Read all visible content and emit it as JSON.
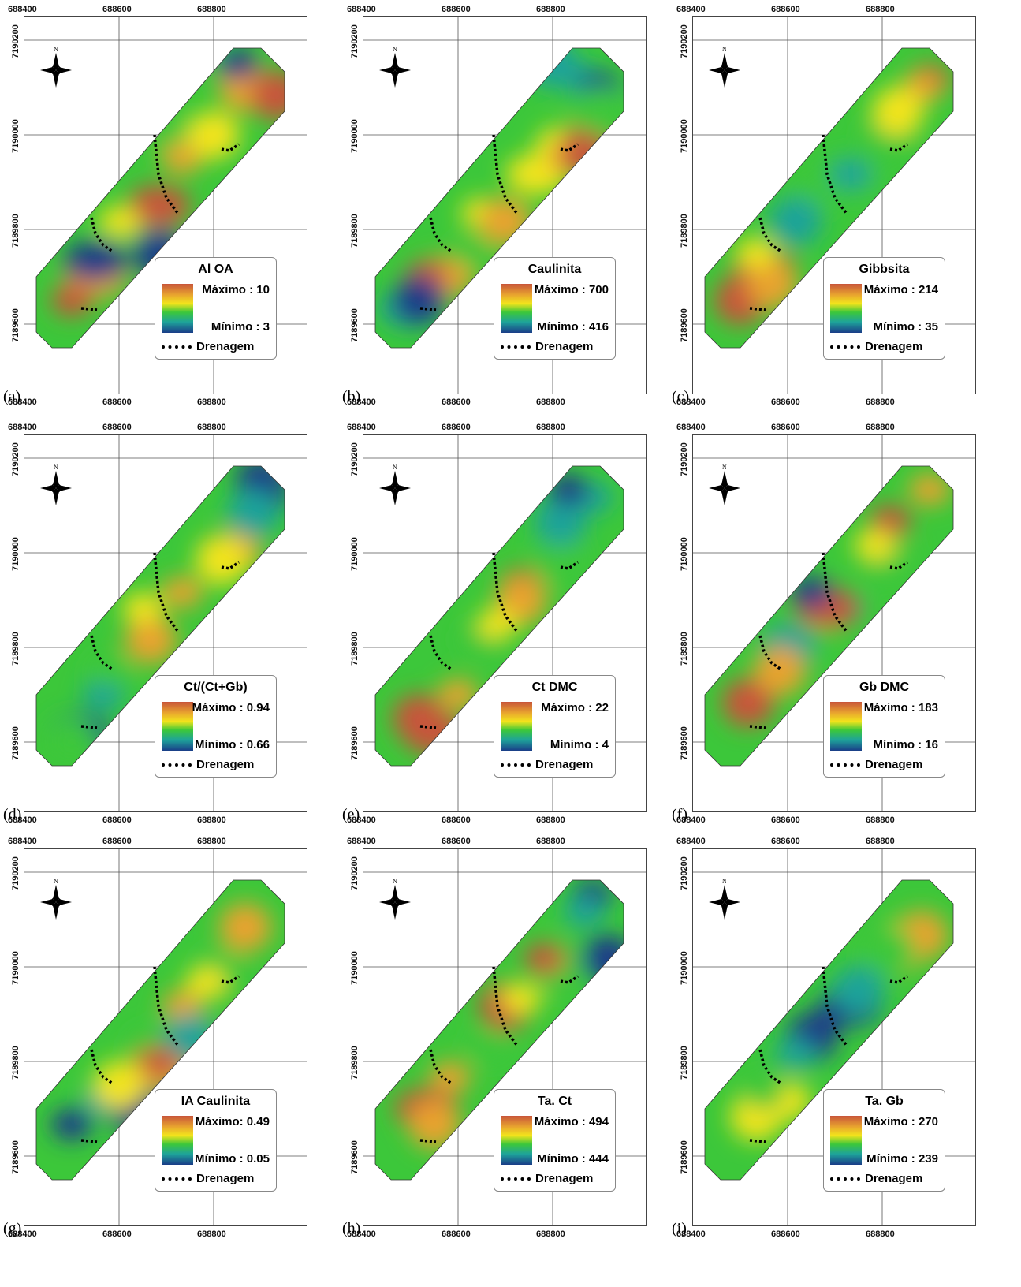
{
  "axes": {
    "x_ticks": [
      "688400",
      "688600",
      "688800"
    ],
    "y_ticks": [
      "7190200",
      "7190000",
      "7189800",
      "7189600"
    ]
  },
  "compass_label": "N",
  "drainage_label": "Drenagem",
  "panels": [
    {
      "letter": "(a)",
      "title": "Al OA",
      "max": "Máximo : 10",
      "min": "Mínimo : 3"
    },
    {
      "letter": "(b)",
      "title": "Caulinita",
      "max": "Máximo : 700",
      "min": "Mínimo : 416"
    },
    {
      "letter": "(c)",
      "title": "Gibbsita",
      "max": "Máximo : 214",
      "min": "Mínimo : 35"
    },
    {
      "letter": "(d)",
      "title": "Ct/(Ct+Gb)",
      "max": "Máximo : 0.94",
      "min": "Mínimo : 0.66"
    },
    {
      "letter": "(e)",
      "title": "Ct DMC",
      "max": "Máximo : 22",
      "min": "Mínimo : 4"
    },
    {
      "letter": "(f)",
      "title": "Gb DMC",
      "max": "Máximo : 183",
      "min": "Mínimo : 16"
    },
    {
      "letter": "(g)",
      "title": "IA Caulinita",
      "max": "Máximo: 0.49",
      "min": "Mínimo : 0.05"
    },
    {
      "letter": "(h)",
      "title": "Ta. Ct",
      "max": "Máximo : 494",
      "min": "Mínimo : 444"
    },
    {
      "letter": "(i)",
      "title": "Ta. Gb",
      "max": "Máximo : 270",
      "min": "Mínimo : 239"
    }
  ],
  "colors": {
    "high": "#c8553a",
    "orange": "#e8a32f",
    "yellow": "#f2e41c",
    "green": "#3cc73a",
    "teal": "#1ea39a",
    "low": "#1a3d88"
  },
  "icons": {
    "compass": "north-arrow-icon",
    "drainage": "dotted-line-icon"
  }
}
